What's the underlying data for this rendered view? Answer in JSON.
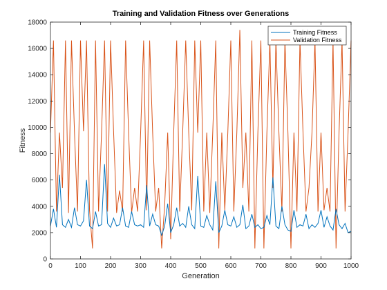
{
  "chart_data": {
    "type": "line",
    "title": "Training and Validation Fitness over Generations",
    "xlabel": "Generation",
    "ylabel": "Fitness",
    "xlim": [
      0,
      1000
    ],
    "ylim": [
      0,
      18000
    ],
    "xticks": [
      0,
      100,
      200,
      300,
      400,
      500,
      600,
      700,
      800,
      900,
      1000
    ],
    "yticks": [
      0,
      2000,
      4000,
      6000,
      8000,
      10000,
      12000,
      14000,
      16000,
      18000
    ],
    "grid": false,
    "legend_position": "top-right",
    "series": [
      {
        "name": "Training Fitness",
        "color": "#0072BD",
        "x": [
          0,
          10,
          20,
          30,
          40,
          50,
          60,
          70,
          80,
          90,
          100,
          110,
          120,
          130,
          140,
          150,
          160,
          170,
          180,
          190,
          200,
          210,
          220,
          230,
          240,
          250,
          260,
          270,
          280,
          290,
          300,
          310,
          320,
          330,
          340,
          350,
          360,
          370,
          380,
          390,
          400,
          410,
          420,
          430,
          440,
          450,
          460,
          470,
          480,
          490,
          500,
          510,
          520,
          530,
          540,
          550,
          560,
          570,
          580,
          590,
          600,
          610,
          620,
          630,
          640,
          650,
          660,
          670,
          680,
          690,
          700,
          710,
          720,
          730,
          740,
          750,
          760,
          770,
          780,
          790,
          800,
          810,
          820,
          830,
          840,
          850,
          860,
          870,
          880,
          890,
          900,
          910,
          920,
          930,
          940,
          950,
          960,
          970,
          980,
          990,
          1000
        ],
        "y": [
          2500,
          3800,
          2400,
          6400,
          2600,
          2400,
          3000,
          2400,
          3900,
          2600,
          2500,
          2900,
          6000,
          2500,
          2300,
          3600,
          2500,
          2600,
          7200,
          2700,
          2400,
          3100,
          2500,
          2600,
          3900,
          2500,
          2400,
          3600,
          2600,
          2500,
          2600,
          2400,
          5600,
          2500,
          3400,
          2600,
          2500,
          1800,
          2500,
          4200,
          2000,
          2600,
          3900,
          2500,
          2700,
          2400,
          4000,
          2600,
          2300,
          6300,
          2500,
          2400,
          3300,
          2600,
          2200,
          5900,
          2000,
          2500,
          3700,
          2600,
          2500,
          3200,
          2400,
          2600,
          4100,
          2300,
          2500,
          3400,
          2400,
          2600,
          2300,
          2400,
          3300,
          2600,
          6200,
          2500,
          2300,
          4000,
          2600,
          2200,
          2100,
          3700,
          2400,
          2600,
          2500,
          3400,
          2300,
          2600,
          2400,
          2700,
          3700,
          2400,
          3200,
          2500,
          2200,
          3800,
          2600,
          2300,
          2700,
          2000,
          2100
        ]
      },
      {
        "name": "Validation Fitness",
        "color": "#D95319",
        "x": [
          0,
          10,
          20,
          30,
          40,
          50,
          60,
          70,
          80,
          90,
          100,
          110,
          120,
          130,
          140,
          150,
          160,
          170,
          180,
          190,
          200,
          210,
          220,
          230,
          240,
          250,
          260,
          270,
          280,
          290,
          300,
          310,
          320,
          330,
          340,
          350,
          360,
          370,
          380,
          390,
          400,
          410,
          420,
          430,
          440,
          450,
          460,
          470,
          480,
          490,
          500,
          510,
          520,
          530,
          540,
          550,
          560,
          570,
          580,
          590,
          600,
          610,
          620,
          630,
          640,
          650,
          660,
          670,
          680,
          690,
          700,
          710,
          720,
          730,
          740,
          750,
          760,
          770,
          780,
          790,
          800,
          810,
          820,
          830,
          840,
          850,
          860,
          870,
          880,
          890,
          900,
          910,
          920,
          930,
          940,
          950,
          960,
          970,
          980,
          990,
          1000
        ],
        "y": [
          9600,
          16600,
          3600,
          9600,
          5400,
          16600,
          3500,
          16600,
          9600,
          3600,
          16600,
          9700,
          16600,
          3700,
          800,
          16600,
          3600,
          9600,
          16600,
          3600,
          16600,
          9700,
          3500,
          5200,
          3600,
          16600,
          9600,
          3500,
          5400,
          3600,
          9600,
          16600,
          3700,
          16600,
          9600,
          3600,
          5400,
          800,
          4100,
          9600,
          1500,
          9600,
          16600,
          3600,
          9700,
          16600,
          9600,
          3700,
          16600,
          9600,
          16600,
          3600,
          9600,
          3500,
          9700,
          16600,
          800,
          9600,
          3700,
          9600,
          16600,
          3600,
          9600,
          17400,
          5400,
          9600,
          3600,
          16600,
          800,
          9600,
          16600,
          800,
          9600,
          16600,
          5400,
          16600,
          9600,
          3600,
          16600,
          9600,
          800,
          9600,
          3600,
          16600,
          9700,
          3600,
          5400,
          9600,
          16600,
          3600,
          9600,
          3700,
          5400,
          3600,
          16600,
          800,
          9600,
          16600,
          3600,
          9600,
          16600
        ]
      }
    ]
  }
}
